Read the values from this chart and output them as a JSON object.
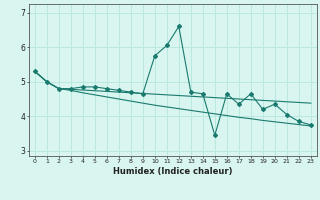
{
  "xlabel": "Humidex (Indice chaleur)",
  "x_values": [
    0,
    1,
    2,
    3,
    4,
    5,
    6,
    7,
    8,
    9,
    10,
    11,
    12,
    13,
    14,
    15,
    16,
    17,
    18,
    19,
    20,
    21,
    22,
    23
  ],
  "y_main": [
    5.3,
    5.0,
    4.8,
    4.8,
    4.85,
    4.85,
    4.8,
    4.75,
    4.7,
    4.65,
    5.75,
    6.05,
    6.6,
    4.7,
    4.65,
    3.45,
    4.65,
    4.35,
    4.65,
    4.2,
    4.35,
    4.05,
    3.85,
    3.75
  ],
  "y_trend1": [
    5.3,
    5.0,
    4.8,
    4.78,
    4.76,
    4.74,
    4.72,
    4.7,
    4.68,
    4.66,
    4.64,
    4.62,
    4.6,
    4.58,
    4.56,
    4.54,
    4.52,
    4.5,
    4.48,
    4.46,
    4.44,
    4.42,
    4.4,
    4.38
  ],
  "y_trend2": [
    5.3,
    5.0,
    4.8,
    4.75,
    4.68,
    4.62,
    4.56,
    4.5,
    4.44,
    4.38,
    4.32,
    4.27,
    4.22,
    4.17,
    4.12,
    4.07,
    4.02,
    3.97,
    3.93,
    3.88,
    3.84,
    3.8,
    3.76,
    3.72
  ],
  "line_color": "#1a7a6e",
  "bg_color": "#d8f5f0",
  "grid_color": "#b8e8e0",
  "ylim": [
    2.85,
    7.25
  ],
  "yticks": [
    3,
    4,
    5,
    6,
    7
  ],
  "xlim": [
    -0.5,
    23.5
  ]
}
